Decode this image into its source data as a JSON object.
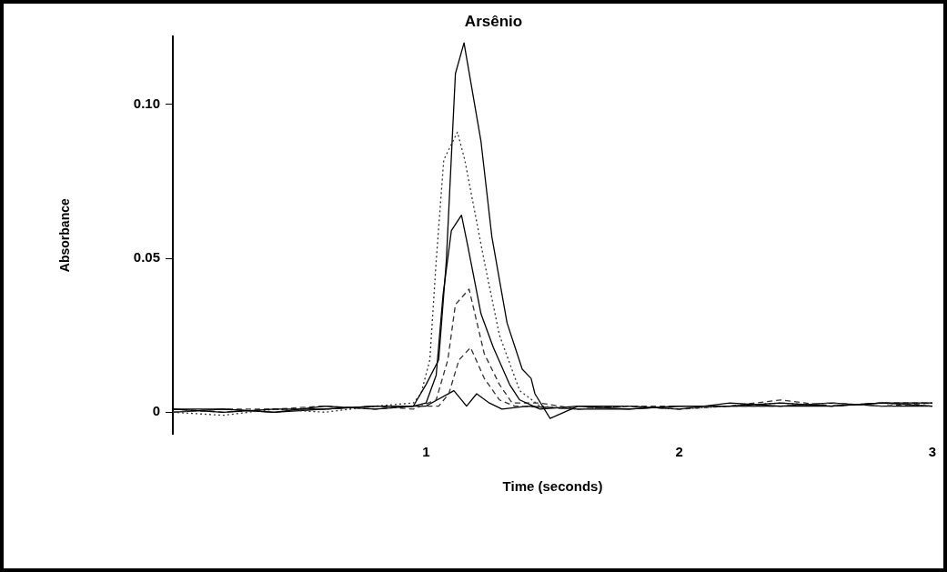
{
  "chart_data": {
    "type": "line",
    "title": "Arsênio",
    "xlabel": "Time (seconds)",
    "ylabel": "Absorbance",
    "xlim": [
      0,
      3
    ],
    "xticks": [
      1,
      2,
      3
    ],
    "ylim": [
      -0.007,
      0.122
    ],
    "yticks": [
      0,
      0.05,
      {
        "value": 0.1,
        "label": "0.10"
      }
    ],
    "grid": false,
    "legend": false,
    "marker": "none",
    "series": [
      {
        "color": "#000000",
        "line_style": "solid",
        "x": [
          0,
          0.2,
          0.4,
          0.6,
          0.8,
          0.95,
          1.0,
          1.05,
          1.08,
          1.116,
          1.15,
          1.217,
          1.26,
          1.32,
          1.38,
          1.415,
          1.43,
          1.49,
          1.6,
          1.8,
          2.0,
          2.2,
          2.4,
          2.6,
          2.8,
          3.0
        ],
        "values": [
          0.001,
          0,
          0.001,
          0.001,
          0.002,
          0.002,
          0.009,
          0.017,
          0.049,
          0.11,
          0.12,
          0.088,
          0.057,
          0.029,
          0.014,
          0.011,
          0.006,
          -0.002,
          0.002,
          0.001,
          0.002,
          0.002,
          0.003,
          0.002,
          0.003,
          0.003
        ]
      },
      {
        "color": "#333333",
        "line_style": "dotted",
        "x": [
          0,
          0.2,
          0.4,
          0.6,
          0.8,
          0.95,
          0.98,
          1.015,
          1.04,
          1.07,
          1.124,
          1.153,
          1.23,
          1.29,
          1.37,
          1.45,
          1.6,
          1.8,
          2.0,
          2.2,
          2.4,
          2.6,
          2.8,
          3.0
        ],
        "values": [
          0,
          -0.001,
          0.001,
          0,
          0.002,
          0.003,
          0.006,
          0.017,
          0.049,
          0.082,
          0.091,
          0.082,
          0.049,
          0.025,
          0.007,
          0.002,
          0.001,
          0.002,
          0.001,
          0.002,
          0.003,
          0.002,
          0.003,
          0.002
        ]
      },
      {
        "color": "#000000",
        "line_style": "solid",
        "x": [
          0,
          0.2,
          0.4,
          0.6,
          0.8,
          0.95,
          1.0,
          1.04,
          1.067,
          1.1,
          1.14,
          1.165,
          1.217,
          1.266,
          1.33,
          1.37,
          1.45,
          1.6,
          1.8,
          2.0,
          2.2,
          2.4,
          2.6,
          2.8,
          3.0
        ],
        "values": [
          0.001,
          0.001,
          0,
          0.002,
          0.001,
          0.002,
          0.003,
          0.012,
          0.038,
          0.059,
          0.064,
          0.054,
          0.032,
          0.021,
          0.009,
          0.004,
          0.001,
          0.002,
          0.002,
          0.001,
          0.003,
          0.002,
          0.002,
          0.003,
          0.002
        ]
      },
      {
        "color": "#333333",
        "line_style": "dashed",
        "x": [
          0,
          0.2,
          0.4,
          0.6,
          0.8,
          0.95,
          1.04,
          1.086,
          1.116,
          1.17,
          1.23,
          1.29,
          1.34,
          1.45,
          1.6,
          1.8,
          2.0,
          2.2,
          2.4,
          2.6,
          2.8,
          3.0
        ],
        "values": [
          0,
          0.001,
          0.001,
          0.001,
          0.002,
          0.001,
          0.004,
          0.017,
          0.035,
          0.04,
          0.019,
          0.009,
          0.003,
          0.003,
          0.001,
          0.002,
          0.002,
          0.002,
          0.002,
          0.003,
          0.002,
          0.003
        ]
      },
      {
        "color": "#333333",
        "line_style": "dashed",
        "x": [
          0,
          0.2,
          0.4,
          0.6,
          0.8,
          0.95,
          1.05,
          1.09,
          1.13,
          1.176,
          1.23,
          1.29,
          1.35,
          1.6,
          1.8,
          2.0,
          2.2,
          2.4,
          2.6,
          2.8,
          3.0
        ],
        "values": [
          0.001,
          0,
          0.001,
          0.002,
          0.001,
          0.002,
          0.002,
          0.006,
          0.017,
          0.021,
          0.011,
          0.004,
          0.002,
          0.001,
          0.002,
          0.001,
          0.002,
          0.004,
          0.002,
          0.003,
          0.003
        ]
      },
      {
        "color": "#000000",
        "line_style": "solid",
        "x": [
          0,
          0.2,
          0.4,
          0.6,
          0.8,
          1.0,
          1.11,
          1.16,
          1.2,
          1.25,
          1.3,
          1.4,
          1.6,
          1.8,
          2.0,
          2.2,
          2.4,
          2.6,
          2.8,
          3.0
        ],
        "values": [
          0,
          0.001,
          0,
          0.001,
          0.002,
          0.002,
          0.007,
          0.002,
          0.006,
          0.003,
          0.001,
          0.002,
          0.001,
          0.001,
          0.002,
          0.002,
          0.002,
          0.003,
          0.002,
          0.002
        ]
      }
    ]
  }
}
